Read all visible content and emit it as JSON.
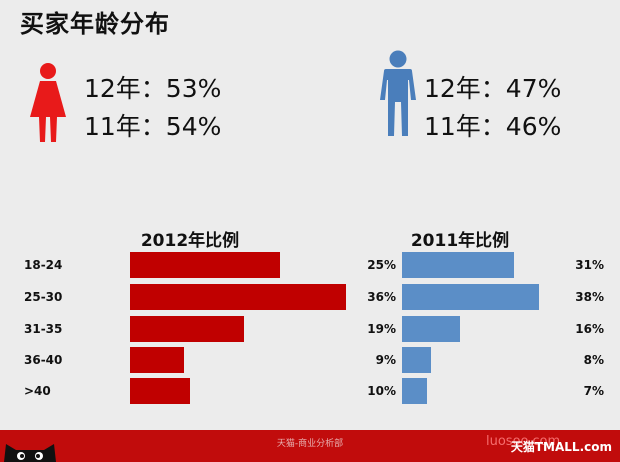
{
  "title": "买家年龄分布",
  "female": {
    "line1": "12年：53%",
    "line2": "11年：54%",
    "icon": "female-person-icon",
    "color": "#e81a1a"
  },
  "male": {
    "line1": "12年：47%",
    "line2": "11年：46%",
    "icon": "male-person-icon",
    "color": "#4a7ebb"
  },
  "chart_data": [
    {
      "type": "bar",
      "orientation": "horizontal",
      "title": "2012年比例",
      "categories": [
        "18-24",
        "25-30",
        "31-35",
        "36-40",
        ">40"
      ],
      "values": [
        25,
        36,
        19,
        9,
        10
      ],
      "labels": [
        "25%",
        "36%",
        "19%",
        "9%",
        "10%"
      ],
      "xlim": [
        0,
        36
      ],
      "color": "#c00000"
    },
    {
      "type": "bar",
      "orientation": "horizontal",
      "title": "2011年比例",
      "categories": [
        "18-24",
        "25-30",
        "31-35",
        "36-40",
        ">40"
      ],
      "values": [
        31,
        38,
        16,
        8,
        7
      ],
      "labels": [
        "31%",
        "38%",
        "16%",
        "8%",
        "7%"
      ],
      "xlim": [
        0,
        38
      ],
      "color": "#5b8ec7"
    }
  ],
  "footer": {
    "text": "天猫-商业分析部",
    "brand": "天猫TMALL.com",
    "watermark": "luosoo.com"
  }
}
